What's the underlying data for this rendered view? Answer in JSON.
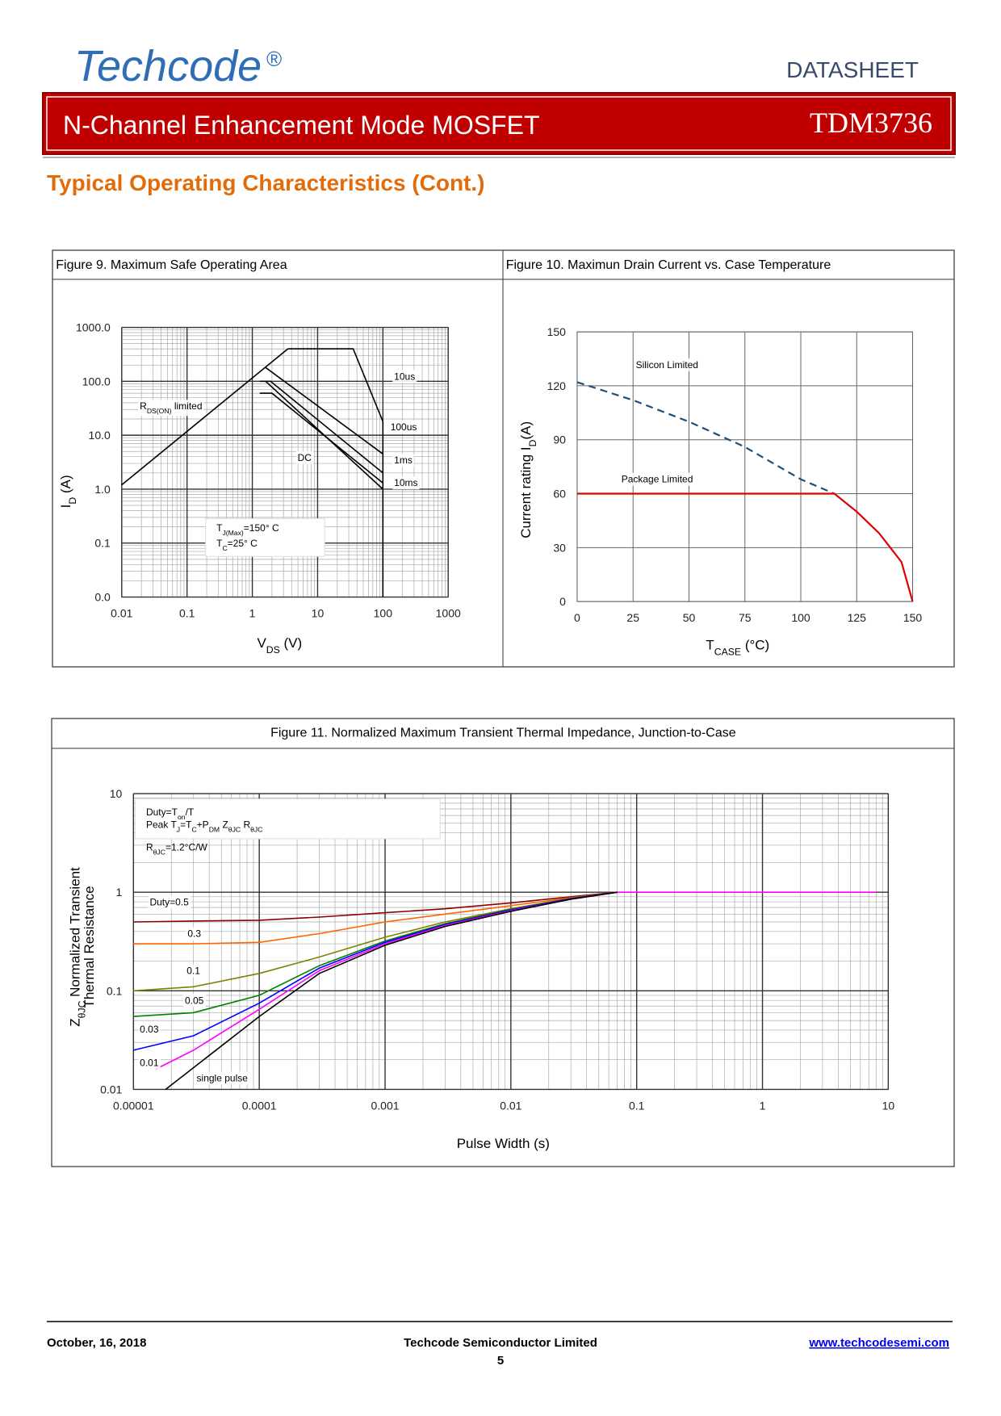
{
  "header": {
    "logo": "Techcode",
    "logo_mark": "®",
    "doc_type": "DATASHEET",
    "title": "N-Channel Enhancement Mode MOSFET",
    "part": "TDM3736"
  },
  "section_title": "Typical Operating Characteristics (Cont.)",
  "charts": [
    {
      "type": "line",
      "title": "Figure 9. Maximum Safe Operating Area",
      "log_x": true,
      "log_y": true,
      "grid": true,
      "xlim": [
        0.01,
        1000
      ],
      "ylim": [
        0.01,
        1000
      ],
      "xticks": [
        0.01,
        0.1,
        1,
        10,
        100,
        1000
      ],
      "yticks": [
        {
          "value": 0.01,
          "label": "0.0"
        },
        0.1,
        {
          "value": 1,
          "label": "1.0"
        },
        {
          "value": 10,
          "label": "10.0"
        },
        {
          "value": 100,
          "label": "100.0"
        },
        {
          "value": 1000,
          "label": "1000.0"
        }
      ],
      "x_label": [
        "V",
        "DS",
        " (V)"
      ],
      "y_label": [
        "I",
        "D",
        " (A)"
      ],
      "series": [
        {
          "name": "10us",
          "color": "#000000",
          "x": [
            3.5,
            35,
            100,
            100
          ],
          "values": [
            400,
            400,
            18,
            0.01
          ]
        },
        {
          "name": "100us",
          "color": "#000000",
          "x": [
            1.6,
            100
          ],
          "values": [
            180,
            4.5
          ]
        },
        {
          "name": "1ms",
          "color": "#000000",
          "x": [
            1.3,
            1.9,
            100
          ],
          "values": [
            100,
            100,
            2
          ]
        },
        {
          "name": "10ms",
          "color": "#000000",
          "x": [
            1.3,
            2,
            100
          ],
          "values": [
            60,
            60,
            1.3
          ]
        },
        {
          "name": "DC",
          "color": "#000000",
          "x": [
            1.6,
            100
          ],
          "values": [
            100,
            1
          ]
        },
        {
          "name": [
            "R",
            "DS(ON)",
            " limited"
          ],
          "color": "#000000",
          "x": [
            0.01,
            3.5
          ],
          "values": [
            1.2,
            400
          ]
        }
      ],
      "annotations": [
        [
          "T",
          "J(Max)",
          "=150° C"
        ],
        [
          "T",
          "C",
          "=25° C"
        ]
      ]
    },
    {
      "type": "line",
      "title": "Figure 10. Maximun Drain Current vs. Case Temperature",
      "log_x": false,
      "log_y": false,
      "grid": true,
      "xlim": [
        0,
        150
      ],
      "ylim": [
        0,
        150
      ],
      "xticks": [
        0,
        25,
        50,
        75,
        100,
        125,
        150
      ],
      "yticks": [
        0,
        30,
        60,
        90,
        120,
        150
      ],
      "x_label": [
        "T",
        "CASE",
        " (°C)"
      ],
      "y_label": [
        "Current rating I",
        "D",
        "(A)"
      ],
      "series": [
        {
          "name": "Silicon Limited",
          "color": "#1f4e79",
          "dashed": true,
          "x": [
            0,
            25,
            50,
            75,
            100,
            115
          ],
          "values": [
            122,
            112,
            100,
            86,
            68,
            60
          ]
        },
        {
          "name": "Package Limited",
          "color": "#e00000",
          "x": [
            0,
            115,
            125,
            135,
            145,
            150
          ],
          "values": [
            60,
            60,
            50,
            38,
            22,
            0
          ]
        }
      ],
      "annotations": []
    },
    {
      "type": "line",
      "title": "Figure 11. Normalized Maximum Transient Thermal Impedance, Junction-to-Case",
      "log_x": true,
      "log_y": true,
      "grid": true,
      "xlim": [
        1e-05,
        10
      ],
      "ylim": [
        0.01,
        10
      ],
      "xticks": [
        {
          "value": 1e-05,
          "label": "0.00001"
        },
        {
          "value": 0.0001,
          "label": "0.0001"
        },
        0.001,
        0.01,
        0.1,
        1,
        10
      ],
      "yticks": [
        0.01,
        0.1,
        1,
        10
      ],
      "x_label": "Pulse Width (s)",
      "y_label": [
        "Z",
        "θJC",
        " Normalized Transient"
      ],
      "y_label_2": "Thermal Resistance",
      "series": [
        {
          "name": "Duty=0.5",
          "color": "#8b0000",
          "x": [
            1e-05,
            3e-05,
            0.0001,
            0.0003,
            0.001,
            0.003,
            0.01,
            0.03,
            0.07
          ],
          "values": [
            0.5,
            0.51,
            0.52,
            0.56,
            0.62,
            0.68,
            0.78,
            0.9,
            1
          ]
        },
        {
          "name": "0.3",
          "color": "#ff6600",
          "x": [
            1e-05,
            3e-05,
            0.0001,
            0.0003,
            0.001,
            0.003,
            0.01,
            0.03,
            0.07
          ],
          "values": [
            0.3,
            0.3,
            0.31,
            0.38,
            0.5,
            0.6,
            0.73,
            0.88,
            1
          ]
        },
        {
          "name": "0.1",
          "color": "#808000",
          "x": [
            1e-05,
            3e-05,
            0.0001,
            0.0003,
            0.001,
            0.003,
            0.01,
            0.03,
            0.07
          ],
          "values": [
            0.1,
            0.11,
            0.15,
            0.22,
            0.35,
            0.5,
            0.68,
            0.87,
            1
          ]
        },
        {
          "name": "0.05",
          "color": "#008000",
          "x": [
            1e-05,
            3e-05,
            0.0001,
            0.0003,
            0.001,
            0.003,
            0.01,
            0.03,
            0.07
          ],
          "values": [
            0.055,
            0.06,
            0.09,
            0.18,
            0.32,
            0.48,
            0.67,
            0.86,
            1
          ]
        },
        {
          "name": "0.03",
          "color": "#0000ff",
          "x": [
            1e-05,
            3e-05,
            0.0001,
            0.0003,
            0.001,
            0.003,
            0.01,
            0.03,
            0.07
          ],
          "values": [
            0.025,
            0.035,
            0.075,
            0.17,
            0.31,
            0.47,
            0.66,
            0.86,
            1
          ]
        },
        {
          "name": "0.01",
          "color": "#ff00ff",
          "x": [
            1.5e-05,
            3e-05,
            0.0001,
            0.0003,
            0.001,
            0.003,
            0.01,
            0.03,
            0.07,
            8
          ],
          "values": [
            0.016,
            0.025,
            0.065,
            0.16,
            0.3,
            0.46,
            0.65,
            0.85,
            1,
            1
          ]
        },
        {
          "name": "single pulse",
          "color": "#000000",
          "x": [
            1.8e-05,
            0.0001,
            0.0003,
            0.001,
            0.003,
            0.01,
            0.03,
            0.07
          ],
          "values": [
            0.01,
            0.055,
            0.15,
            0.29,
            0.45,
            0.64,
            0.85,
            1
          ]
        }
      ],
      "annotations": [
        [
          "Duty=T",
          "on",
          "/T"
        ],
        [
          "Peak T",
          "J",
          "=T",
          "C",
          "+P",
          "DM",
          " Z",
          "θJC",
          " R",
          "θJC"
        ],
        [
          "R",
          "θJC",
          "=1.2°C/W"
        ]
      ]
    }
  ],
  "footer": {
    "date": "October, 16, 2018",
    "company": "Techcode Semiconductor Limited",
    "page": "5",
    "url": "www.techcodesemi.com"
  }
}
